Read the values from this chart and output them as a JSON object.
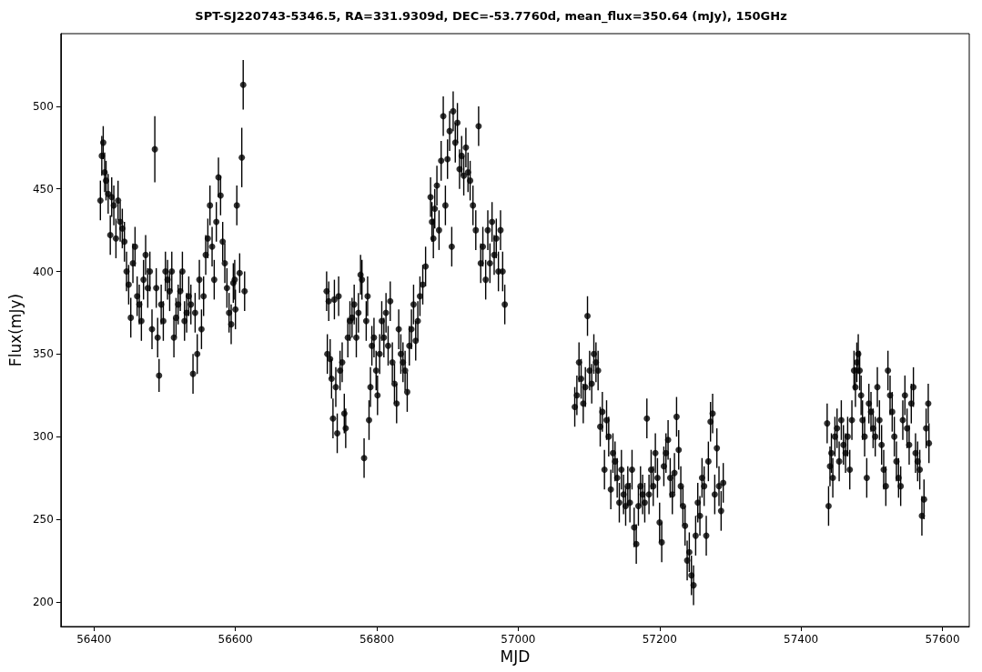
{
  "chart_data": {
    "type": "scatter",
    "title": "SPT-SJ220743-5346.5, RA=331.9309d, DEC=-53.7760d, mean_flux=350.64 (mJy), 150GHz",
    "xlabel": "MJD",
    "ylabel": "Flux(mJy)",
    "xlim": [
      56353,
      57638
    ],
    "ylim": [
      185,
      544
    ],
    "xticks": [
      56400,
      56600,
      56800,
      57000,
      57200,
      57400,
      57600
    ],
    "yticks": [
      200,
      250,
      300,
      350,
      400,
      450,
      500
    ],
    "grid": false,
    "marker": "circle",
    "series": [
      {
        "color": "#000000",
        "x": [
          56409,
          56411,
          56413,
          56415,
          56417,
          56420,
          56423,
          56425,
          56428,
          56431,
          56434,
          56437,
          56440,
          56443,
          56446,
          56449,
          56452,
          56455,
          56458,
          56461,
          56464,
          56467,
          56470,
          56473,
          56476,
          56479,
          56482,
          56486,
          56488,
          56490,
          56492,
          56495,
          56498,
          56501,
          56504,
          56507,
          56510,
          56513,
          56516,
          56519,
          56522,
          56525,
          56528,
          56531,
          56534,
          56537,
          56540,
          56543,
          56546,
          56549,
          56552,
          56555,
          56558,
          56561,
          56564,
          56567,
          56570,
          56573,
          56576,
          56579,
          56582,
          56585,
          56588,
          56591,
          56594,
          56597,
          56599,
          56600,
          56602,
          56606,
          56609,
          56611,
          56613
        ],
        "values": [
          443,
          470,
          478,
          460,
          455,
          447,
          422,
          445,
          440,
          420,
          443,
          430,
          426,
          418,
          400,
          392,
          372,
          405,
          415,
          385,
          380,
          370,
          395,
          410,
          390,
          400,
          365,
          474,
          390,
          360,
          337,
          380,
          370,
          400,
          395,
          388,
          400,
          360,
          372,
          380,
          388,
          400,
          370,
          375,
          385,
          380,
          338,
          375,
          350,
          395,
          365,
          385,
          410,
          420,
          440,
          415,
          395,
          430,
          457,
          446,
          418,
          405,
          390,
          375,
          368,
          393,
          395,
          377,
          440,
          399,
          469,
          513,
          388
        ],
        "errors": [
          12,
          12,
          10,
          12,
          12,
          12,
          12,
          12,
          12,
          12,
          12,
          12,
          12,
          12,
          12,
          12,
          12,
          12,
          12,
          12,
          12,
          12,
          12,
          12,
          12,
          12,
          12,
          20,
          12,
          12,
          10,
          12,
          12,
          12,
          12,
          12,
          12,
          12,
          12,
          12,
          12,
          12,
          12,
          12,
          12,
          12,
          12,
          12,
          12,
          12,
          12,
          12,
          12,
          12,
          12,
          12,
          12,
          12,
          12,
          12,
          12,
          12,
          12,
          12,
          12,
          12,
          12,
          12,
          12,
          12,
          18,
          15,
          12
        ]
      },
      {
        "color": "#000000",
        "x": [
          56729,
          56730,
          56732,
          56734,
          56736,
          56738,
          56740,
          56742,
          56744,
          56746,
          56748,
          56751,
          56754,
          56756,
          56759,
          56762,
          56765,
          56768,
          56771,
          56774,
          56777,
          56779,
          56782,
          56785,
          56787,
          56789,
          56791,
          56793,
          56796,
          56799,
          56801,
          56804,
          56807,
          56810,
          56813,
          56816,
          56819,
          56822,
          56825,
          56828,
          56831,
          56834,
          56837,
          56840,
          56843,
          56846,
          56849,
          56852,
          56855,
          56858,
          56861,
          56865,
          56869,
          56876,
          56878,
          56880,
          56882,
          56885,
          56888,
          56891,
          56894,
          56897,
          56900,
          56903,
          56906,
          56908,
          56911,
          56914,
          56917,
          56920,
          56923,
          56926,
          56929,
          56932,
          56936,
          56940,
          56944,
          56947,
          56950,
          56954,
          56957,
          56960,
          56963,
          56966,
          56969,
          56972,
          56975,
          56978,
          56981
        ],
        "values": [
          388,
          350,
          382,
          347,
          335,
          311,
          383,
          330,
          302,
          385,
          340,
          345,
          314,
          305,
          360,
          370,
          372,
          380,
          360,
          375,
          398,
          395,
          287,
          370,
          385,
          310,
          330,
          355,
          360,
          340,
          325,
          350,
          370,
          360,
          375,
          355,
          382,
          345,
          332,
          320,
          365,
          350,
          345,
          340,
          327,
          355,
          365,
          380,
          358,
          370,
          385,
          392,
          403,
          445,
          430,
          420,
          438,
          452,
          425,
          467,
          494,
          440,
          468,
          485,
          415,
          497,
          478,
          490,
          462,
          470,
          458,
          475,
          460,
          455,
          440,
          425,
          488,
          405,
          415,
          395,
          425,
          405,
          430,
          410,
          420,
          400,
          425,
          400,
          380
        ],
        "errors": [
          12,
          12,
          12,
          12,
          12,
          12,
          12,
          12,
          12,
          12,
          12,
          12,
          12,
          12,
          12,
          12,
          12,
          12,
          12,
          12,
          12,
          12,
          12,
          12,
          12,
          12,
          12,
          12,
          12,
          12,
          12,
          12,
          12,
          12,
          12,
          12,
          12,
          12,
          12,
          12,
          12,
          12,
          12,
          12,
          12,
          12,
          12,
          12,
          12,
          12,
          12,
          12,
          12,
          12,
          12,
          12,
          12,
          12,
          12,
          12,
          12,
          12,
          12,
          12,
          12,
          12,
          12,
          12,
          12,
          12,
          12,
          12,
          12,
          12,
          12,
          12,
          12,
          12,
          12,
          12,
          12,
          12,
          12,
          12,
          12,
          12,
          12,
          12,
          12
        ]
      },
      {
        "color": "#000000",
        "x": [
          57080,
          57083,
          57086,
          57089,
          57092,
          57095,
          57098,
          57101,
          57104,
          57107,
          57110,
          57113,
          57116,
          57119,
          57122,
          57125,
          57128,
          57131,
          57134,
          57137,
          57140,
          57143,
          57146,
          57149,
          57152,
          57155,
          57158,
          57161,
          57164,
          57167,
          57170,
          57173,
          57176,
          57179,
          57182,
          57185,
          57188,
          57191,
          57194,
          57197,
          57200,
          57203,
          57206,
          57209,
          57212,
          57215,
          57218,
          57221,
          57224,
          57227,
          57230,
          57233,
          57236,
          57239,
          57242,
          57245,
          57248,
          57251,
          57254,
          57257,
          57260,
          57263,
          57266,
          57269,
          57272,
          57275,
          57278,
          57281,
          57284,
          57287,
          57290
        ],
        "values": [
          318,
          325,
          345,
          335,
          320,
          330,
          373,
          340,
          332,
          350,
          345,
          340,
          306,
          315,
          280,
          310,
          300,
          268,
          290,
          285,
          275,
          260,
          280,
          265,
          258,
          270,
          260,
          280,
          245,
          235,
          258,
          270,
          265,
          260,
          311,
          265,
          280,
          270,
          290,
          275,
          248,
          236,
          282,
          290,
          298,
          275,
          265,
          278,
          312,
          292,
          270,
          258,
          246,
          225,
          230,
          216,
          210,
          240,
          260,
          252,
          275,
          270,
          240,
          285,
          309,
          314,
          265,
          293,
          270,
          255,
          272
        ],
        "errors": [
          12,
          12,
          12,
          12,
          12,
          12,
          12,
          12,
          12,
          12,
          12,
          12,
          12,
          12,
          12,
          12,
          12,
          12,
          12,
          12,
          12,
          12,
          12,
          12,
          12,
          12,
          12,
          12,
          12,
          12,
          12,
          12,
          12,
          12,
          12,
          12,
          12,
          12,
          12,
          12,
          12,
          12,
          12,
          12,
          12,
          12,
          12,
          12,
          12,
          12,
          12,
          12,
          12,
          12,
          12,
          12,
          12,
          12,
          12,
          12,
          12,
          12,
          12,
          12,
          12,
          12,
          12,
          12,
          12,
          12,
          12
        ]
      },
      {
        "color": "#000000",
        "x": [
          57437,
          57439,
          57441,
          57443,
          57445,
          57448,
          57451,
          57454,
          57457,
          57460,
          57463,
          57466,
          57469,
          57472,
          57475,
          57477,
          57479,
          57481,
          57483,
          57485,
          57487,
          57490,
          57493,
          57496,
          57499,
          57502,
          57505,
          57508,
          57511,
          57514,
          57517,
          57520,
          57523,
          57526,
          57529,
          57532,
          57535,
          57538,
          57541,
          57544,
          57547,
          57550,
          57553,
          57556,
          57559,
          57562,
          57565,
          57568,
          57571,
          57574,
          57577,
          57580,
          57581
        ],
        "values": [
          308,
          258,
          282,
          290,
          275,
          300,
          305,
          285,
          310,
          295,
          290,
          300,
          280,
          310,
          340,
          330,
          345,
          350,
          340,
          325,
          310,
          300,
          275,
          320,
          315,
          305,
          300,
          330,
          310,
          295,
          280,
          270,
          340,
          325,
          315,
          300,
          285,
          275,
          270,
          310,
          325,
          305,
          295,
          320,
          330,
          290,
          285,
          280,
          252,
          262,
          305,
          320,
          296
        ],
        "errors": [
          12,
          12,
          12,
          12,
          12,
          12,
          12,
          12,
          12,
          12,
          12,
          12,
          12,
          12,
          12,
          12,
          12,
          12,
          12,
          12,
          12,
          12,
          12,
          12,
          12,
          12,
          12,
          12,
          12,
          12,
          12,
          12,
          12,
          12,
          12,
          12,
          12,
          12,
          12,
          12,
          12,
          12,
          12,
          12,
          12,
          12,
          12,
          12,
          12,
          12,
          12,
          12,
          12
        ]
      }
    ]
  }
}
